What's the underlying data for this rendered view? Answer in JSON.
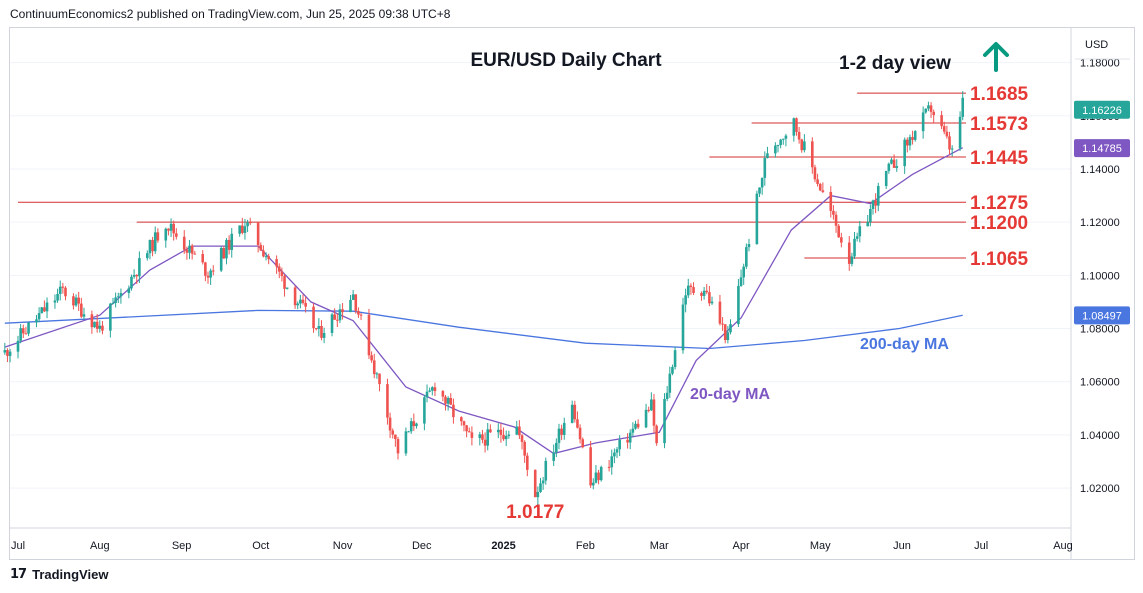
{
  "publisher": "ContinuumEconomics2 published on TradingView.com, Jun 25, 2025 09:38 UTC+8",
  "footer_logo": "TradingView",
  "colors": {
    "bull": "#26a69a",
    "bear": "#ef5350",
    "ma20": "#7e57c2",
    "ma200": "#4a76e0",
    "level_line": "#d32f2f",
    "level_text": "#e53935",
    "arrow": "#089981"
  },
  "chart_data": {
    "type": "candlestick",
    "title": "EUR/USD Daily Chart",
    "subtitle": "1-2 day view",
    "view_direction": "up",
    "currency_label": "USD",
    "ylim": [
      1.005,
      1.193
    ],
    "y_ticks": [
      "1.18000",
      "1.16000",
      "1.14000",
      "1.12000",
      "1.10000",
      "1.08000",
      "1.06000",
      "1.04000",
      "1.02000"
    ],
    "x_ticks": [
      "Jul",
      "Aug",
      "Sep",
      "Oct",
      "Nov",
      "Dec",
      "2025",
      "Feb",
      "Mar",
      "Apr",
      "May",
      "Jun",
      "Jul",
      "Aug"
    ],
    "price_tags": [
      {
        "label": "1.16226",
        "value": 1.16226,
        "style": "bull"
      },
      {
        "label": "1.14785",
        "value": 1.14785,
        "style": "ma20"
      },
      {
        "label": "1.08497",
        "value": 1.08497,
        "style": "ma200"
      }
    ],
    "levels": [
      {
        "label": "1.1685",
        "value": 1.1685,
        "from": "2025-05-15"
      },
      {
        "label": "1.1573",
        "value": 1.1573,
        "from": "2025-04-05"
      },
      {
        "label": "1.1445",
        "value": 1.1445,
        "from": "2025-03-20"
      },
      {
        "label": "1.1275",
        "value": 1.1275,
        "from": "2024-07-01"
      },
      {
        "label": "1.1200",
        "value": 1.12,
        "from": "2024-08-15"
      },
      {
        "label": "1.1065",
        "value": 1.1065,
        "from": "2025-04-25"
      }
    ],
    "annotations": [
      {
        "text": "1.0177",
        "value": 1.0177,
        "date": "2025-01-13"
      },
      {
        "text": "20-day MA",
        "series": "ma20"
      },
      {
        "text": "200-day MA",
        "series": "ma200"
      }
    ],
    "price_path": [
      [
        "2024-06-26",
        1.071
      ],
      [
        "2024-07-18",
        1.0945
      ],
      [
        "2024-08-01",
        1.08
      ],
      [
        "2024-08-26",
        1.12
      ],
      [
        "2024-09-05",
        1.108
      ],
      [
        "2024-09-11",
        1.101
      ],
      [
        "2024-09-25",
        1.12
      ],
      [
        "2024-10-23",
        1.078
      ],
      [
        "2024-11-05",
        1.093
      ],
      [
        "2024-11-22",
        1.034
      ],
      [
        "2024-12-06",
        1.059
      ],
      [
        "2024-12-20",
        1.037
      ],
      [
        "2025-01-06",
        1.043
      ],
      [
        "2025-01-13",
        1.0177
      ],
      [
        "2025-01-27",
        1.053
      ],
      [
        "2025-02-03",
        1.021
      ],
      [
        "2025-02-26",
        1.051
      ],
      [
        "2025-02-28",
        1.036
      ],
      [
        "2025-03-11",
        1.094
      ],
      [
        "2025-03-18",
        1.095
      ],
      [
        "2025-03-27",
        1.076
      ],
      [
        "2025-04-11",
        1.147
      ],
      [
        "2025-04-21",
        1.1573
      ],
      [
        "2025-05-12",
        1.1065
      ],
      [
        "2025-05-26",
        1.138
      ],
      [
        "2025-06-12",
        1.163
      ],
      [
        "2025-06-20",
        1.146
      ],
      [
        "2025-06-24",
        1.1641
      ]
    ],
    "ma20_path": [
      [
        "2024-06-26",
        1.073
      ],
      [
        "2024-08-01",
        1.085
      ],
      [
        "2024-08-20",
        1.102
      ],
      [
        "2024-09-05",
        1.111
      ],
      [
        "2024-09-30",
        1.111
      ],
      [
        "2024-10-20",
        1.09
      ],
      [
        "2024-11-05",
        1.083
      ],
      [
        "2024-11-25",
        1.058
      ],
      [
        "2024-12-15",
        1.049
      ],
      [
        "2025-01-05",
        1.043
      ],
      [
        "2025-01-20",
        1.033
      ],
      [
        "2025-02-05",
        1.037
      ],
      [
        "2025-03-01",
        1.041
      ],
      [
        "2025-03-15",
        1.068
      ],
      [
        "2025-04-01",
        1.084
      ],
      [
        "2025-04-20",
        1.117
      ],
      [
        "2025-05-05",
        1.13
      ],
      [
        "2025-05-20",
        1.127
      ],
      [
        "2025-06-05",
        1.138
      ],
      [
        "2025-06-24",
        1.148
      ]
    ],
    "ma200_path": [
      [
        "2024-06-26",
        1.082
      ],
      [
        "2024-08-15",
        1.0845
      ],
      [
        "2024-09-30",
        1.0868
      ],
      [
        "2024-11-05",
        1.0865
      ],
      [
        "2024-12-15",
        1.0805
      ],
      [
        "2025-02-01",
        1.0745
      ],
      [
        "2025-03-20",
        1.0725
      ],
      [
        "2025-04-25",
        1.0755
      ],
      [
        "2025-05-31",
        1.08
      ],
      [
        "2025-06-24",
        1.085
      ]
    ]
  }
}
